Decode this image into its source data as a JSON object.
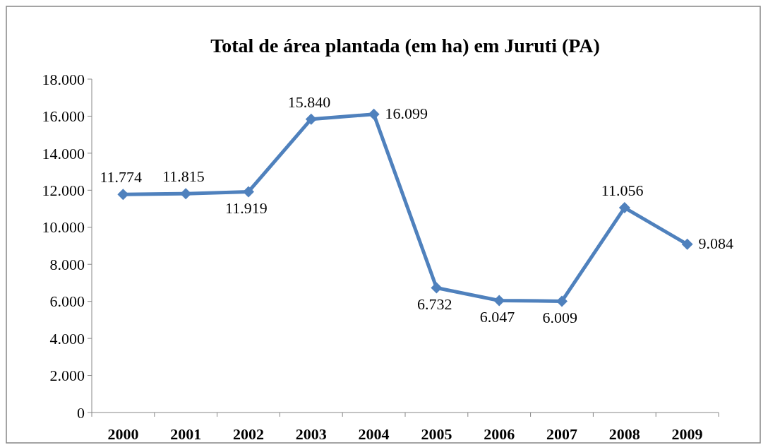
{
  "chart_data": {
    "type": "line",
    "title": "Total de área plantada (em ha) em Juruti (PA)",
    "categories": [
      "2000",
      "2001",
      "2002",
      "2003",
      "2004",
      "2005",
      "2006",
      "2007",
      "2008",
      "2009"
    ],
    "series": [
      {
        "color": "#4f81bd",
        "values": [
          11774,
          11815,
          11919,
          15840,
          16099,
          6732,
          6047,
          6009,
          11056,
          9084
        ],
        "value_labels": [
          "11.774",
          "11.815",
          "11.919",
          "15.840",
          "16.099",
          "6.732",
          "6.047",
          "6.009",
          "11.056",
          "9.084"
        ]
      }
    ],
    "ylim": [
      0,
      18000
    ],
    "yticks": [
      {
        "value": 0,
        "label": "0"
      },
      {
        "value": 2000,
        "label": "2.000"
      },
      {
        "value": 4000,
        "label": "4.000"
      },
      {
        "value": 6000,
        "label": "6.000"
      },
      {
        "value": 8000,
        "label": "8.000"
      },
      {
        "value": 10000,
        "label": "10.000"
      },
      {
        "value": 12000,
        "label": "12.000"
      },
      {
        "value": 14000,
        "label": "14.000"
      },
      {
        "value": 16000,
        "label": "16.000"
      },
      {
        "value": 18000,
        "label": "18.000"
      }
    ],
    "grid": false,
    "marker": "diamond",
    "line_style": "solid"
  }
}
